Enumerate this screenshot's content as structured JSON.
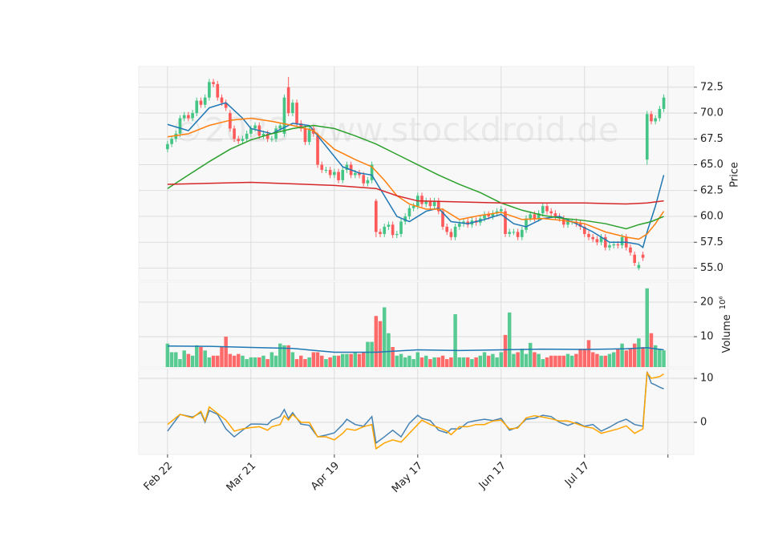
{
  "chart_data": [
    {
      "type": "candlestick",
      "watermark": "©2023 www.stockdroid.de",
      "ylabel": "Price",
      "up_color": "#45c585",
      "down_color": "#fe5a5a",
      "grid": true,
      "xlim": [
        -6.9,
        126.2
      ],
      "ylim": [
        53.8,
        74.5
      ],
      "yticks": [
        {
          "value": 55,
          "label": "55.0"
        },
        57.5,
        {
          "value": 60,
          "label": "60.0"
        },
        62.5,
        {
          "value": 65,
          "label": "65.0"
        },
        67.5,
        {
          "value": 70,
          "label": "70.0"
        },
        72.5
      ],
      "open": [
        66.5,
        67.0,
        67.5,
        68.0,
        69.5,
        69.8,
        69.5,
        70.0,
        71.2,
        70.8,
        71.5,
        73.0,
        72.8,
        71.5,
        71.0,
        70.0,
        68.5,
        67.5,
        67.3,
        67.5,
        68.0,
        68.5,
        68.8,
        67.8,
        68.0,
        67.5,
        67.5,
        68.5,
        68.0,
        72.5,
        70.0,
        71.0,
        69.0,
        68.5,
        67.2,
        68.5,
        67.8,
        65.0,
        64.5,
        64.5,
        64.0,
        64.3,
        63.5,
        64.5,
        65.0,
        64.0,
        64.2,
        64.0,
        63.2,
        63.5,
        61.5,
        58.5,
        58.3,
        59.0,
        59.2,
        58.2,
        58.3,
        59.5,
        60.0,
        60.8,
        61.0,
        62.0,
        61.2,
        61.5,
        61.0,
        61.5,
        60.5,
        59.0,
        58.5,
        58.0,
        59.0,
        59.3,
        59.5,
        59.2,
        59.6,
        59.4,
        59.8,
        60.2,
        60.0,
        60.3,
        60.5,
        60.5,
        58.3,
        58.5,
        58.5,
        58.0,
        58.7,
        59.8,
        60.2,
        59.8,
        60.3,
        61.0,
        60.5,
        60.3,
        60.0,
        59.8,
        59.2,
        59.5,
        59.5,
        59.3,
        59.0,
        58.3,
        58.0,
        57.8,
        57.5,
        58.0,
        57.0,
        57.2,
        57.3,
        57.2,
        58.0,
        57.0,
        56.3,
        55.0,
        56.3,
        65.5,
        69.9,
        69.2,
        69.5,
        70.4
      ],
      "high": [
        67.3,
        67.8,
        68.3,
        69.8,
        70.1,
        70.1,
        70.3,
        71.5,
        71.5,
        71.8,
        73.3,
        73.3,
        73.1,
        71.8,
        71.3,
        70.3,
        68.8,
        67.8,
        67.8,
        68.3,
        68.8,
        69.1,
        69.1,
        68.3,
        68.3,
        67.8,
        68.8,
        69.1,
        71.8,
        73.5,
        71.3,
        71.3,
        69.3,
        68.8,
        68.8,
        68.8,
        68.1,
        65.3,
        64.8,
        64.8,
        64.6,
        64.6,
        64.8,
        65.3,
        65.3,
        64.5,
        64.5,
        64.3,
        63.8,
        65.3,
        61.7,
        58.8,
        59.3,
        59.5,
        59.5,
        58.6,
        59.8,
        60.3,
        61.1,
        61.3,
        62.3,
        62.3,
        61.8,
        61.8,
        61.8,
        61.8,
        60.8,
        59.3,
        58.8,
        59.3,
        59.6,
        59.8,
        59.8,
        59.9,
        59.9,
        60.1,
        60.5,
        60.5,
        60.6,
        60.8,
        61.0,
        60.8,
        58.8,
        58.8,
        58.8,
        59.0,
        60.1,
        60.5,
        60.5,
        60.6,
        61.3,
        61.3,
        60.8,
        60.6,
        60.3,
        60.1,
        59.8,
        59.8,
        59.8,
        59.6,
        59.3,
        58.6,
        58.3,
        58.1,
        58.3,
        58.3,
        57.5,
        57.6,
        57.6,
        58.3,
        58.3,
        57.3,
        56.6,
        55.6,
        56.6,
        70.2,
        70.2,
        69.8,
        70.7,
        71.8
      ],
      "low": [
        66.2,
        66.7,
        67.2,
        67.7,
        69.2,
        69.2,
        69.2,
        69.7,
        70.5,
        70.5,
        71.2,
        72.5,
        71.2,
        70.7,
        70.2,
        68.2,
        67.2,
        67.0,
        67.0,
        67.2,
        67.7,
        68.2,
        67.5,
        67.5,
        67.2,
        67.2,
        67.2,
        68.2,
        67.7,
        69.7,
        69.7,
        68.7,
        68.2,
        66.9,
        66.9,
        67.7,
        64.7,
        64.2,
        64.2,
        63.7,
        63.7,
        63.2,
        63.2,
        64.2,
        63.7,
        63.7,
        63.7,
        62.9,
        62.9,
        63.2,
        58.0,
        58.0,
        58.0,
        58.7,
        57.9,
        57.9,
        58.0,
        59.2,
        59.7,
        60.5,
        60.7,
        60.9,
        60.9,
        60.7,
        60.7,
        60.2,
        58.7,
        58.2,
        57.7,
        57.7,
        58.7,
        59.0,
        58.9,
        58.9,
        59.1,
        59.1,
        59.5,
        59.7,
        59.7,
        60.0,
        60.2,
        58.0,
        58.0,
        58.2,
        57.7,
        57.7,
        58.4,
        59.5,
        59.5,
        59.5,
        60.0,
        60.2,
        60.0,
        59.7,
        59.5,
        58.9,
        58.9,
        59.2,
        59.0,
        58.7,
        58.0,
        57.7,
        57.5,
        57.2,
        57.2,
        56.7,
        56.7,
        56.9,
        56.9,
        56.9,
        56.7,
        56.2,
        55.2,
        54.8,
        55.7,
        65.0,
        68.9,
        68.9,
        69.2,
        70.1
      ],
      "close": [
        67.0,
        67.5,
        68.0,
        69.5,
        69.8,
        69.5,
        70.0,
        71.2,
        70.8,
        71.5,
        73.0,
        72.8,
        71.5,
        71.0,
        70.5,
        68.5,
        67.5,
        67.3,
        67.5,
        68.0,
        68.5,
        68.8,
        67.8,
        68.0,
        67.5,
        67.5,
        68.5,
        68.8,
        71.5,
        70.0,
        71.0,
        69.0,
        68.5,
        67.2,
        68.5,
        68.0,
        65.0,
        64.5,
        64.5,
        64.0,
        64.3,
        63.5,
        64.5,
        65.0,
        64.0,
        64.2,
        64.0,
        63.2,
        63.5,
        65.0,
        58.5,
        58.3,
        59.0,
        59.2,
        58.2,
        58.3,
        59.5,
        60.0,
        60.8,
        61.0,
        62.0,
        61.2,
        61.5,
        61.0,
        61.5,
        60.5,
        59.0,
        58.5,
        58.0,
        59.0,
        59.3,
        59.5,
        59.2,
        59.6,
        59.4,
        59.8,
        60.2,
        60.0,
        60.3,
        60.5,
        60.7,
        58.3,
        58.5,
        58.5,
        58.0,
        58.7,
        59.8,
        60.2,
        59.8,
        60.3,
        61.0,
        60.5,
        60.3,
        60.0,
        59.8,
        59.2,
        59.5,
        59.5,
        59.3,
        59.0,
        58.3,
        58.0,
        57.8,
        57.5,
        58.0,
        57.0,
        57.2,
        57.3,
        57.2,
        58.0,
        57.0,
        56.5,
        55.5,
        55.3,
        56.0,
        69.9,
        69.2,
        69.5,
        70.4,
        71.5
      ],
      "series": [
        {
          "color": "#1f77b4",
          "x": [
            0,
            5,
            10,
            14,
            18,
            20,
            25,
            30,
            34,
            38,
            42,
            46,
            49,
            52,
            55,
            58,
            62,
            65,
            68,
            72,
            76,
            80,
            83,
            86,
            90,
            94,
            98,
            102,
            106,
            110,
            113,
            114,
            115,
            117,
            119
          ],
          "values": [
            68.9,
            68.3,
            70.5,
            71.0,
            69.5,
            68.5,
            68.0,
            69.0,
            68.8,
            66.8,
            64.8,
            64.2,
            64.0,
            62.0,
            60.0,
            59.5,
            60.5,
            60.8,
            59.5,
            59.3,
            59.7,
            60.2,
            59.3,
            59.0,
            59.8,
            60.0,
            59.3,
            58.5,
            57.5,
            57.5,
            57.3,
            57.0,
            58.5,
            61.0,
            64.0
          ]
        },
        {
          "color": "#ff7f0e",
          "x": [
            0,
            5,
            10,
            15,
            20,
            25,
            30,
            35,
            40,
            45,
            49,
            52,
            55,
            58,
            62,
            66,
            70,
            75,
            80,
            85,
            90,
            95,
            100,
            105,
            110,
            113,
            115,
            117,
            119
          ],
          "values": [
            67.7,
            68.0,
            68.8,
            69.3,
            69.5,
            69.2,
            68.8,
            68.3,
            66.5,
            65.5,
            64.8,
            63.5,
            62.0,
            61.2,
            60.7,
            60.7,
            59.7,
            60.1,
            60.4,
            59.7,
            59.8,
            59.6,
            59.3,
            58.5,
            58.0,
            57.8,
            58.3,
            59.3,
            60.5
          ]
        },
        {
          "color": "#2ca02c",
          "x": [
            0,
            5,
            10,
            15,
            20,
            25,
            30,
            35,
            40,
            45,
            50,
            55,
            60,
            65,
            70,
            75,
            80,
            85,
            90,
            95,
            100,
            105,
            110,
            113,
            116,
            119
          ],
          "values": [
            62.7,
            64.0,
            65.3,
            66.5,
            67.4,
            68.0,
            68.5,
            68.8,
            68.5,
            67.8,
            67.0,
            66.0,
            65.0,
            64.0,
            63.1,
            62.3,
            61.3,
            60.6,
            60.1,
            59.8,
            59.6,
            59.3,
            58.8,
            59.2,
            59.5,
            60.0
          ]
        },
        {
          "color": "#d62728",
          "x": [
            0,
            20,
            40,
            50,
            55,
            60,
            80,
            100,
            110,
            115,
            119
          ],
          "values": [
            63.1,
            63.3,
            63.0,
            62.7,
            62.0,
            61.5,
            61.3,
            61.3,
            61.2,
            61.3,
            61.5
          ]
        }
      ]
    },
    {
      "type": "bar",
      "ylabel": "Volume",
      "y_multiplier": "10⁶",
      "grid": true,
      "xlim": [
        -6.9,
        126.2
      ],
      "ylim": [
        1.2,
        25.8
      ],
      "yticks": [
        10,
        20
      ],
      "values": [
        8,
        5.5,
        5.5,
        3.5,
        6,
        5,
        4.5,
        7.5,
        7,
        6,
        4,
        4.5,
        4.5,
        7,
        10,
        5,
        4.5,
        5,
        4.5,
        3.5,
        4,
        4,
        4,
        4.5,
        3.5,
        5.5,
        4.5,
        8,
        7.5,
        7.5,
        5.5,
        3.5,
        4.5,
        3.5,
        4,
        5.5,
        5.5,
        4.5,
        3.5,
        4,
        4.5,
        4.5,
        5,
        5,
        5,
        5.5,
        5,
        5.5,
        8.5,
        8.5,
        16,
        14.5,
        18.5,
        11,
        7,
        4.5,
        5,
        4,
        4.5,
        3.5,
        5.5,
        4,
        4.5,
        3.5,
        4,
        4,
        4.5,
        3.5,
        4,
        16.5,
        4,
        4,
        4,
        3.5,
        4,
        4.5,
        5.5,
        4.5,
        5,
        4,
        5.5,
        10.5,
        17,
        5,
        5.5,
        6.5,
        5,
        8.2,
        5.5,
        5,
        3.5,
        4,
        4.5,
        4.5,
        4.5,
        4.5,
        5,
        4.5,
        5,
        6.5,
        6.5,
        9,
        5.5,
        5,
        4.5,
        4.5,
        5,
        5.5,
        6.5,
        8,
        6,
        6.5,
        8,
        9.5,
        7,
        24,
        11,
        7.5,
        6.5,
        6
      ],
      "series": [
        {
          "color": "#1f77b4",
          "x": [
            0,
            10,
            20,
            30,
            40,
            50,
            60,
            70,
            80,
            90,
            100,
            110,
            115,
            119
          ],
          "values": [
            7.3,
            7.2,
            6.9,
            6.6,
            5.5,
            5.5,
            6.2,
            6.0,
            6.2,
            6.4,
            6.3,
            6.5,
            6.8,
            6.2
          ]
        }
      ]
    },
    {
      "type": "line",
      "grid": true,
      "xlim": [
        -6.9,
        126.2
      ],
      "ylim": [
        -7.3,
        12.2
      ],
      "yticks": [
        0,
        10
      ],
      "xticks": [
        {
          "value": 0,
          "label": "Feb 22"
        },
        {
          "value": 20,
          "label": "Mar 21"
        },
        {
          "value": 40,
          "label": "Apr 19"
        },
        {
          "value": 60,
          "label": "May 17"
        },
        {
          "value": 80,
          "label": "Jun 17"
        },
        {
          "value": 100,
          "label": "Jul 17"
        },
        {
          "value": 120,
          "label": null
        }
      ],
      "series": [
        {
          "color": "#4682b4",
          "x": [
            0,
            3,
            6,
            8,
            9,
            10,
            12,
            14,
            16,
            18,
            20,
            22,
            24,
            25,
            27,
            28,
            29,
            30,
            32,
            34,
            36,
            38,
            40,
            42,
            43,
            45,
            47,
            49,
            50,
            52,
            54,
            56,
            58,
            60,
            61,
            63,
            65,
            67,
            68,
            70,
            72,
            74,
            76,
            78,
            80,
            82,
            84,
            86,
            88,
            90,
            92,
            94,
            96,
            98,
            100,
            102,
            104,
            106,
            108,
            110,
            112,
            114,
            115,
            116,
            117,
            118,
            119
          ],
          "values": [
            -2.0,
            1.8,
            1.2,
            2.2,
            0,
            2.7,
            1.8,
            -1.5,
            -3.3,
            -1.8,
            -0.4,
            -0.4,
            -0.5,
            0.5,
            1.3,
            2.9,
            0.9,
            2.2,
            -0.4,
            -0.7,
            -3.3,
            -2.9,
            -2.4,
            -0.5,
            0.7,
            -0.5,
            -0.9,
            1.3,
            -4.7,
            -3.3,
            -1.8,
            -3.3,
            -0.2,
            1.6,
            0.9,
            0.4,
            -1.8,
            -2.4,
            -1.5,
            -1.5,
            0,
            0.4,
            0.7,
            0.4,
            0.9,
            -1.8,
            -1.1,
            0.7,
            0.9,
            1.6,
            1.3,
            0,
            -0.7,
            0,
            -0.9,
            -0.5,
            -2.0,
            -1.1,
            0,
            0.7,
            -0.5,
            -0.9,
            11.5,
            8.9,
            8.5,
            8.0,
            7.6
          ]
        },
        {
          "color": "#ffa500",
          "x": [
            0,
            3,
            6,
            8,
            9,
            10,
            12,
            14,
            16,
            18,
            20,
            22,
            24,
            25,
            27,
            28,
            29,
            30,
            32,
            34,
            36,
            38,
            40,
            42,
            43,
            45,
            47,
            49,
            50,
            52,
            54,
            56,
            58,
            60,
            61,
            63,
            65,
            67,
            68,
            70,
            72,
            74,
            76,
            78,
            80,
            82,
            84,
            86,
            88,
            90,
            92,
            94,
            96,
            98,
            100,
            102,
            104,
            106,
            108,
            110,
            112,
            114,
            115,
            116,
            117,
            118,
            119
          ],
          "values": [
            -0.5,
            1.8,
            1.0,
            2.5,
            0.3,
            3.5,
            2.0,
            0.5,
            -2.0,
            -1.5,
            -1.2,
            -1.0,
            -1.8,
            -1.0,
            -0.5,
            1.5,
            0.5,
            1.8,
            0.0,
            0.0,
            -3.3,
            -3.3,
            -4.0,
            -2.5,
            -1.5,
            -1.8,
            -1.0,
            -0.5,
            -6.0,
            -4.7,
            -4.0,
            -4.5,
            -2.5,
            -0.5,
            0.5,
            -0.5,
            -1.2,
            -2.0,
            -2.8,
            -1.0,
            -1.0,
            -0.5,
            -0.5,
            0.3,
            0.5,
            -1.5,
            -1.3,
            1.0,
            1.5,
            1.2,
            0.8,
            0.3,
            0.3,
            -0.3,
            -1.0,
            -1.3,
            -2.5,
            -2.0,
            -1.5,
            -0.8,
            -2.5,
            -1.5,
            11.3,
            10.0,
            10.2,
            10.4,
            11.0
          ]
        }
      ]
    }
  ]
}
